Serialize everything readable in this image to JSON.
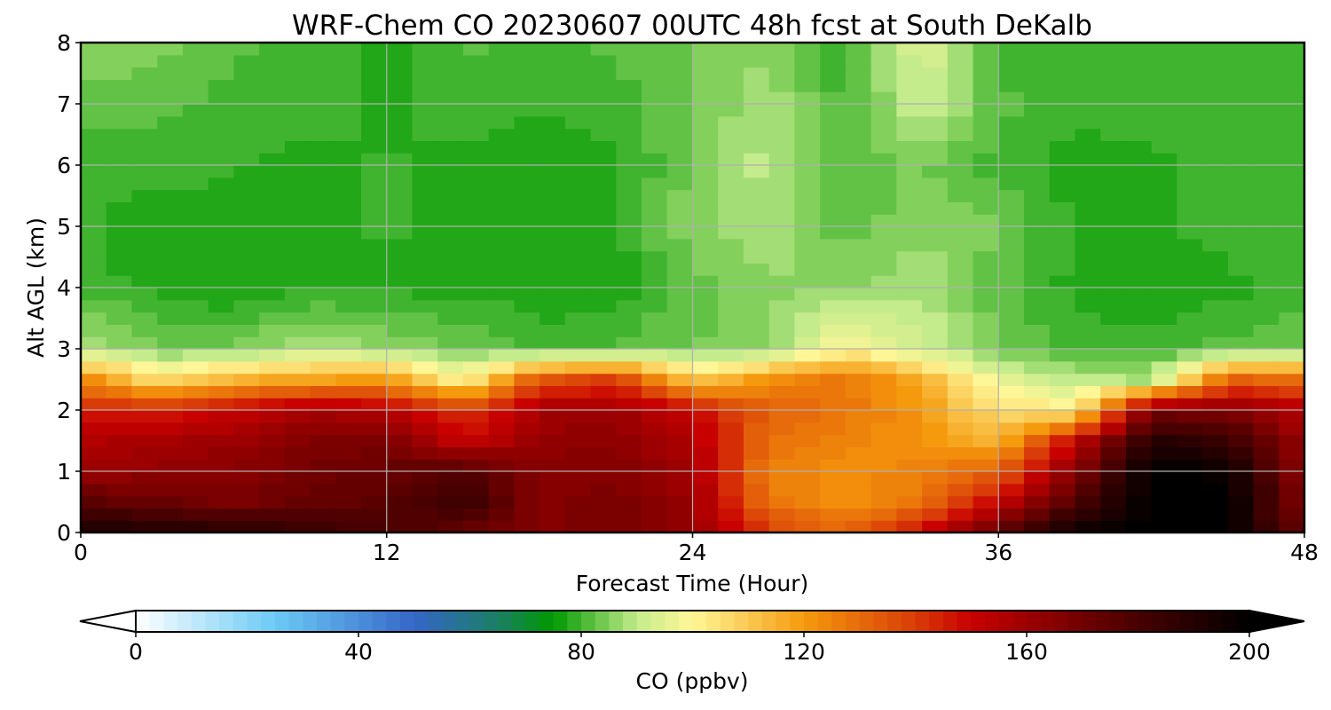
{
  "chart_data": {
    "type": "heatmap",
    "title": "WRF-Chem CO  20230607 00UTC 48h fcst at South DeKalb",
    "xlabel": "Forecast Time (Hour)",
    "ylabel": "Alt AGL (km)",
    "xlim": [
      0,
      48
    ],
    "ylim": [
      0,
      8
    ],
    "xticks": [
      0,
      12,
      24,
      36,
      48
    ],
    "xtick_labels": [
      "0",
      "12",
      "24",
      "36",
      "48"
    ],
    "yticks": [
      0,
      1,
      2,
      3,
      4,
      5,
      6,
      7,
      8
    ],
    "ytick_labels": [
      "0",
      "1",
      "2",
      "3",
      "4",
      "5",
      "6",
      "7",
      "8"
    ],
    "grid": true,
    "z_units": "ppbv",
    "x": [
      0,
      3,
      6,
      9,
      12,
      15,
      18,
      21,
      24,
      27,
      30,
      33,
      36,
      39,
      42,
      45,
      48
    ],
    "y": [
      0,
      0.5,
      1,
      1.5,
      2,
      2.5,
      3,
      4,
      5,
      6,
      7,
      8
    ],
    "z": [
      [
        195,
        192,
        190,
        185,
        180,
        172,
        165,
        168,
        162,
        140,
        130,
        150,
        175,
        198,
        200,
        200,
        170
      ],
      [
        175,
        172,
        168,
        172,
        175,
        185,
        165,
        168,
        160,
        128,
        122,
        128,
        150,
        178,
        200,
        200,
        165
      ],
      [
        160,
        162,
        164,
        170,
        172,
        178,
        164,
        166,
        158,
        125,
        122,
        125,
        132,
        165,
        200,
        198,
        162
      ],
      [
        155,
        158,
        160,
        166,
        168,
        150,
        162,
        164,
        155,
        128,
        125,
        122,
        115,
        150,
        190,
        185,
        160
      ],
      [
        145,
        145,
        150,
        158,
        155,
        140,
        158,
        160,
        150,
        132,
        128,
        120,
        105,
        102,
        168,
        165,
        155
      ],
      [
        125,
        105,
        115,
        118,
        120,
        100,
        135,
        140,
        110,
        122,
        128,
        115,
        96,
        90,
        88,
        132,
        130
      ],
      [
        90,
        84,
        84,
        90,
        86,
        84,
        80,
        82,
        84,
        85,
        100,
        92,
        84,
        80,
        80,
        82,
        84
      ],
      [
        80,
        78,
        76,
        78,
        78,
        78,
        77,
        77,
        82,
        86,
        86,
        88,
        82,
        78,
        76,
        78,
        80
      ],
      [
        79,
        77,
        77,
        78,
        79,
        78,
        77,
        78,
        86,
        88,
        82,
        86,
        84,
        78,
        78,
        80,
        80
      ],
      [
        80,
        80,
        79,
        78,
        79,
        78,
        77,
        78,
        84,
        90,
        82,
        84,
        80,
        78,
        78,
        80,
        80
      ],
      [
        82,
        82,
        80,
        80,
        78,
        80,
        79,
        80,
        84,
        88,
        80,
        92,
        82,
        79,
        80,
        80,
        80
      ],
      [
        86,
        85,
        82,
        80,
        78,
        82,
        80,
        82,
        84,
        86,
        80,
        94,
        80,
        80,
        80,
        80,
        80
      ]
    ],
    "colorbar": {
      "label": "CO  (ppbv)",
      "vmin": 0,
      "vmax": 200,
      "ticks": [
        0,
        40,
        80,
        120,
        160,
        200
      ],
      "tick_labels": [
        "0",
        "40",
        "80",
        "120",
        "160",
        "200"
      ],
      "extend": "both",
      "color_stops": [
        {
          "v": 0,
          "c": "#ffffff"
        },
        {
          "v": 25,
          "c": "#6ccaf5"
        },
        {
          "v": 50,
          "c": "#3566c8"
        },
        {
          "v": 65,
          "c": "#1a7f64"
        },
        {
          "v": 75,
          "c": "#009900"
        },
        {
          "v": 90,
          "c": "#c4eb8c"
        },
        {
          "v": 100,
          "c": "#fff797"
        },
        {
          "v": 120,
          "c": "#f59a0d"
        },
        {
          "v": 140,
          "c": "#d93c08"
        },
        {
          "v": 150,
          "c": "#c80000"
        },
        {
          "v": 175,
          "c": "#5a0000"
        },
        {
          "v": 200,
          "c": "#000000"
        }
      ]
    }
  }
}
